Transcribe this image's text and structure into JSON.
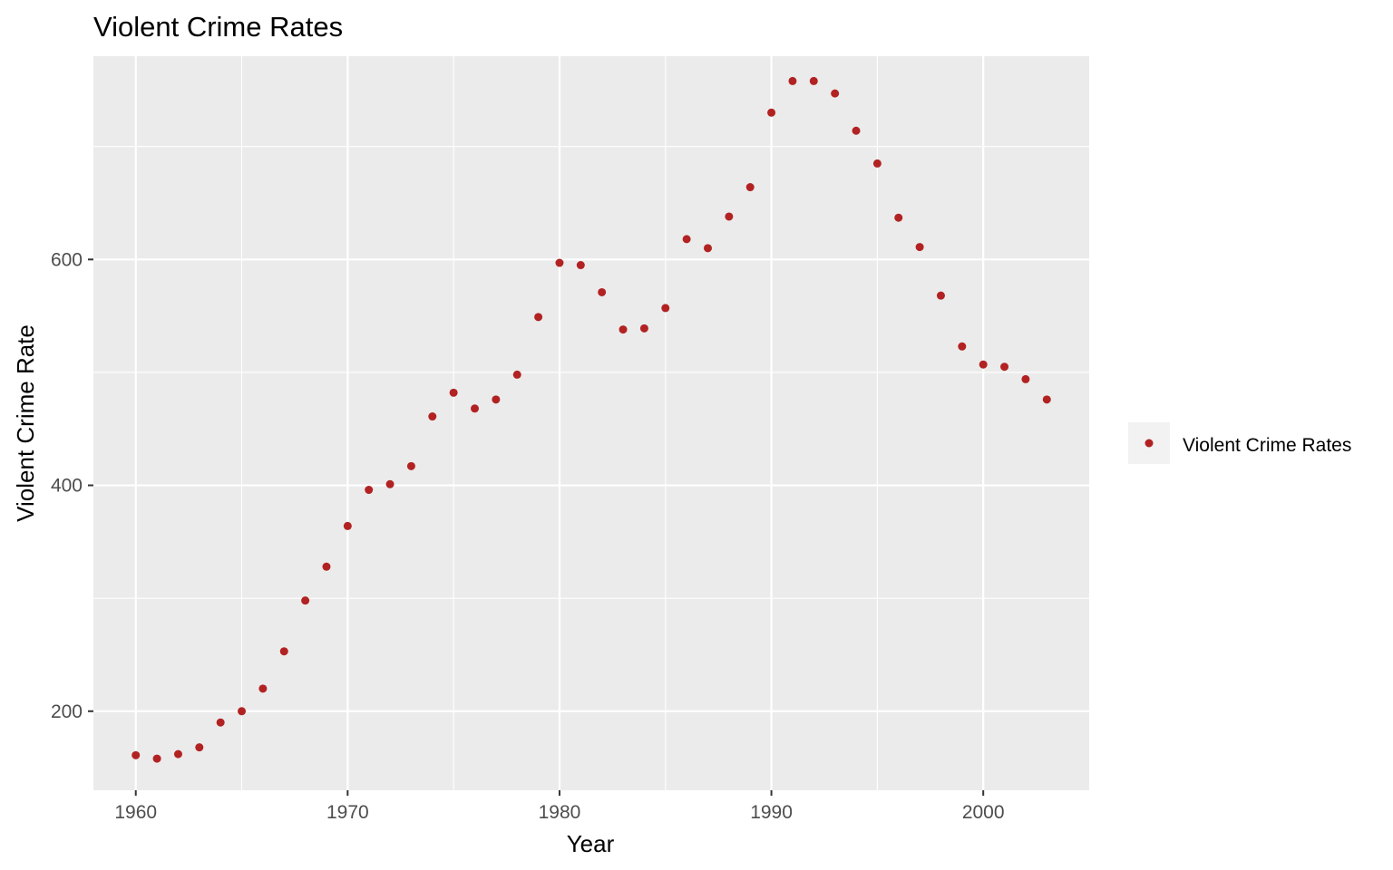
{
  "chart_data": {
    "type": "scatter",
    "title": "Violent Crime Rates",
    "xlabel": "Year",
    "ylabel": "Violent Crime Rate",
    "xlim": [
      1958,
      2005
    ],
    "ylim": [
      130,
      780
    ],
    "x_ticks": [
      1960,
      1970,
      1980,
      1990,
      2000
    ],
    "y_ticks": [
      200,
      400,
      600
    ],
    "grid": true,
    "legend_position": "right",
    "point_color": "#b22222",
    "panel_color": "#ebebeb",
    "series": [
      {
        "name": "Violent Crime Rates",
        "x": [
          1960,
          1961,
          1962,
          1963,
          1964,
          1965,
          1966,
          1967,
          1968,
          1969,
          1970,
          1971,
          1972,
          1973,
          1974,
          1975,
          1976,
          1977,
          1978,
          1979,
          1980,
          1981,
          1982,
          1983,
          1984,
          1985,
          1986,
          1987,
          1988,
          1989,
          1990,
          1991,
          1992,
          1993,
          1994,
          1995,
          1996,
          1997,
          1998,
          1999,
          2000,
          2001,
          2002,
          2003
        ],
        "y": [
          161,
          158,
          162,
          168,
          190,
          200,
          220,
          253,
          298,
          328,
          364,
          396,
          401,
          417,
          461,
          482,
          468,
          476,
          498,
          549,
          597,
          595,
          571,
          538,
          539,
          557,
          618,
          610,
          638,
          664,
          730,
          758,
          758,
          747,
          714,
          685,
          637,
          611,
          568,
          523,
          507,
          505,
          494,
          476
        ]
      }
    ]
  }
}
